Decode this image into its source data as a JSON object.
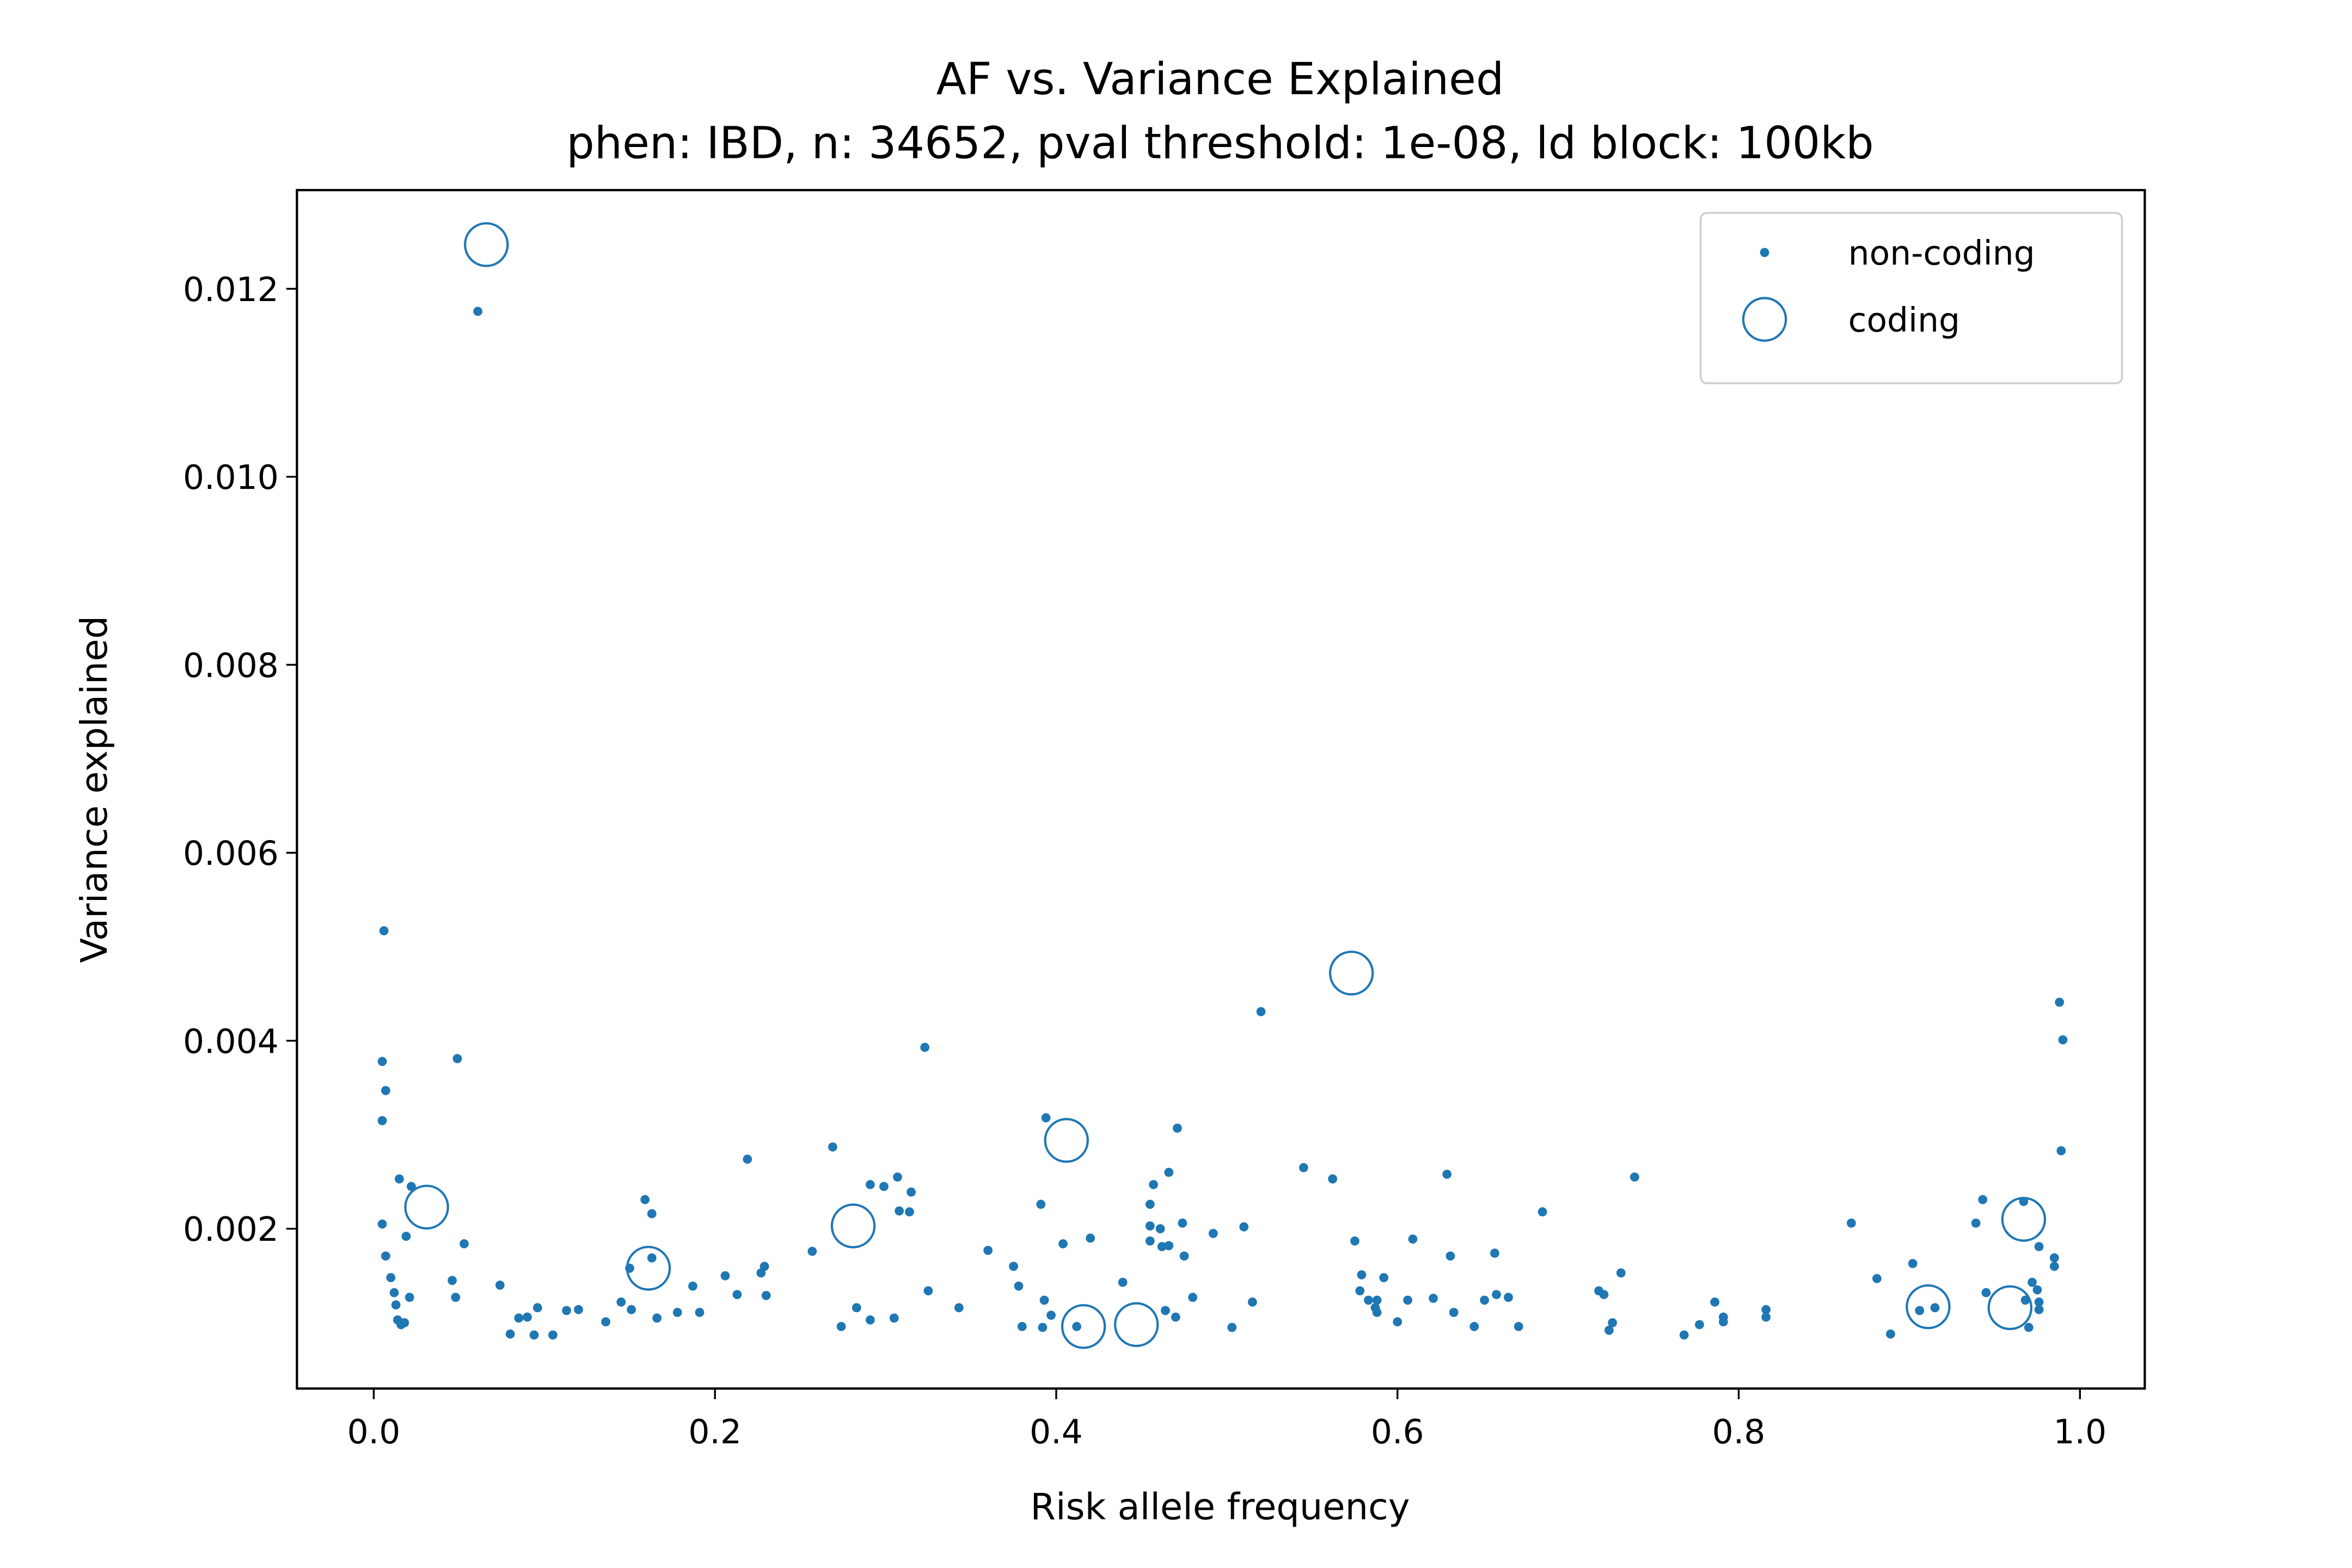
{
  "chart_data": {
    "type": "scatter",
    "title": "AF vs. Variance Explained",
    "subtitle": "phen: IBD, n: 34652, pval threshold: 1e-08, ld block: 100kb",
    "x_label": "Risk allele frequency",
    "y_label": "Variance explained",
    "xlim": [
      -0.045,
      1.038
    ],
    "ylim": [
      0.0003,
      0.01305
    ],
    "xticks": [
      {
        "value": 0,
        "label": "0.0"
      },
      0.2,
      0.4,
      0.6,
      0.8,
      {
        "value": 1,
        "label": "1.0"
      }
    ],
    "yticks": [
      0.002,
      0.004,
      0.006,
      0.008,
      {
        "value": 0.01,
        "label": "0.010"
      },
      0.012
    ],
    "legend": "upper right",
    "series": [
      {
        "name": "non-coding",
        "color": "#1f77b4",
        "marker": "dot",
        "x": [
          0.006,
          0.005,
          0.007,
          0.005,
          0.005,
          0.007,
          0.01,
          0.012,
          0.013,
          0.014,
          0.016,
          0.018,
          0.015,
          0.022,
          0.019,
          0.021,
          0.061,
          0.049,
          0.046,
          0.048,
          0.053,
          0.074,
          0.08,
          0.085,
          0.09,
          0.094,
          0.096,
          0.105,
          0.113,
          0.12,
          0.136,
          0.145,
          0.151,
          0.15,
          0.159,
          0.163,
          0.163,
          0.166,
          0.178,
          0.187,
          0.191,
          0.206,
          0.213,
          0.219,
          0.227,
          0.229,
          0.23,
          0.257,
          0.269,
          0.274,
          0.283,
          0.291,
          0.291,
          0.299,
          0.305,
          0.307,
          0.308,
          0.314,
          0.315,
          0.323,
          0.325,
          0.343,
          0.36,
          0.375,
          0.378,
          0.38,
          0.391,
          0.392,
          0.393,
          0.394,
          0.397,
          0.404,
          0.412,
          0.42,
          0.439,
          0.455,
          0.455,
          0.457,
          0.455,
          0.461,
          0.462,
          0.464,
          0.466,
          0.466,
          0.471,
          0.47,
          0.474,
          0.475,
          0.48,
          0.492,
          0.503,
          0.51,
          0.515,
          0.52,
          0.545,
          0.562,
          0.575,
          0.579,
          0.578,
          0.583,
          0.587,
          0.588,
          0.588,
          0.592,
          0.6,
          0.609,
          0.606,
          0.621,
          0.629,
          0.631,
          0.633,
          0.645,
          0.651,
          0.657,
          0.658,
          0.665,
          0.671,
          0.685,
          0.718,
          0.721,
          0.724,
          0.726,
          0.731,
          0.739,
          0.768,
          0.777,
          0.786,
          0.791,
          0.791,
          0.816,
          0.816,
          0.866,
          0.881,
          0.889,
          0.902,
          0.906,
          0.915,
          0.939,
          0.943,
          0.945,
          0.967,
          0.968,
          0.97,
          0.972,
          0.976,
          0.976,
          0.975,
          0.976,
          0.985,
          0.985,
          0.988,
          0.99,
          0.989
        ],
        "values": [
          0.00517,
          0.00378,
          0.00347,
          0.00315,
          0.00205,
          0.00171,
          0.00148,
          0.00132,
          0.00119,
          0.00103,
          0.00098,
          0.001,
          0.00253,
          0.00245,
          0.00192,
          0.00127,
          0.01176,
          0.00381,
          0.00145,
          0.00127,
          0.00184,
          0.0014,
          0.00088,
          0.00105,
          0.00106,
          0.00087,
          0.00116,
          0.00087,
          0.00113,
          0.00114,
          0.00101,
          0.00122,
          0.00114,
          0.00158,
          0.00231,
          0.00216,
          0.00169,
          0.00105,
          0.00111,
          0.00139,
          0.00111,
          0.0015,
          0.0013,
          0.00274,
          0.00153,
          0.0016,
          0.00129,
          0.00176,
          0.00287,
          0.00096,
          0.00116,
          0.00103,
          0.00247,
          0.00245,
          0.00105,
          0.00255,
          0.00219,
          0.00218,
          0.00239,
          0.00393,
          0.00134,
          0.00116,
          0.00177,
          0.0016,
          0.00139,
          0.00096,
          0.00226,
          0.00095,
          0.00124,
          0.00318,
          0.00108,
          0.00184,
          0.00096,
          0.0019,
          0.00143,
          0.00203,
          0.00187,
          0.00247,
          0.00226,
          0.002,
          0.00181,
          0.00113,
          0.0026,
          0.00182,
          0.00307,
          0.00106,
          0.00206,
          0.00171,
          0.00127,
          0.00195,
          0.00095,
          0.00202,
          0.00122,
          0.00431,
          0.00265,
          0.00253,
          0.00187,
          0.00151,
          0.00134,
          0.00124,
          0.00116,
          0.00124,
          0.00111,
          0.00148,
          0.00101,
          0.00189,
          0.00124,
          0.00126,
          0.00258,
          0.00171,
          0.00111,
          0.00096,
          0.00124,
          0.00174,
          0.0013,
          0.00127,
          0.00096,
          0.00218,
          0.00134,
          0.0013,
          0.00092,
          0.001,
          0.00153,
          0.00255,
          0.00087,
          0.00098,
          0.00122,
          0.00106,
          0.00101,
          0.00114,
          0.00106,
          0.00206,
          0.00147,
          0.00088,
          0.00163,
          0.00113,
          0.00116,
          0.00206,
          0.00231,
          0.00132,
          0.00229,
          0.00124,
          0.00095,
          0.00143,
          0.00122,
          0.00181,
          0.00135,
          0.00114,
          0.0016,
          0.00169,
          0.00441,
          0.00401,
          0.00283
        ]
      },
      {
        "name": "coding",
        "color": "#1f77b4",
        "marker": "circle",
        "x": [
          0.066,
          0.031,
          0.161,
          0.281,
          0.406,
          0.416,
          0.447,
          0.573,
          0.911,
          0.959,
          0.967
        ],
        "values": [
          0.01247,
          0.00223,
          0.00158,
          0.00203,
          0.00294,
          0.00096,
          0.00098,
          0.00472,
          0.00117,
          0.00116,
          0.0021
        ]
      }
    ]
  }
}
